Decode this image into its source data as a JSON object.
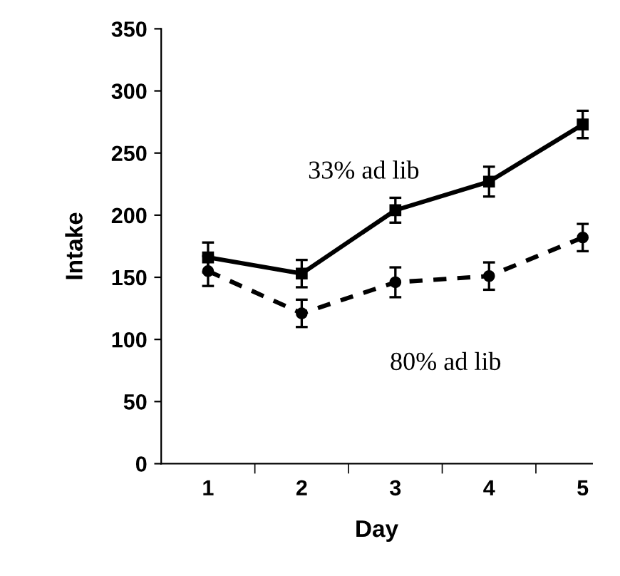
{
  "chart_data": {
    "type": "line",
    "xlabel": "Day",
    "ylabel": "Intake",
    "categories": [
      "1",
      "2",
      "3",
      "4",
      "5"
    ],
    "ylim": [
      0,
      350
    ],
    "yticks": [
      0,
      50,
      100,
      150,
      200,
      250,
      300,
      350
    ],
    "grid": false,
    "legend": false,
    "series": [
      {
        "name": "33% ad lib",
        "color": "#000000",
        "marker": "square",
        "line_style": "solid",
        "values": [
          166,
          153,
          204,
          227,
          273
        ],
        "errors": [
          12,
          11,
          10,
          12,
          11
        ]
      },
      {
        "name": "80% ad lib",
        "color": "#000000",
        "marker": "circle",
        "line_style": "dashed",
        "values": [
          155,
          121,
          146,
          151,
          182
        ],
        "errors": [
          12,
          11,
          12,
          11,
          11
        ]
      }
    ]
  }
}
